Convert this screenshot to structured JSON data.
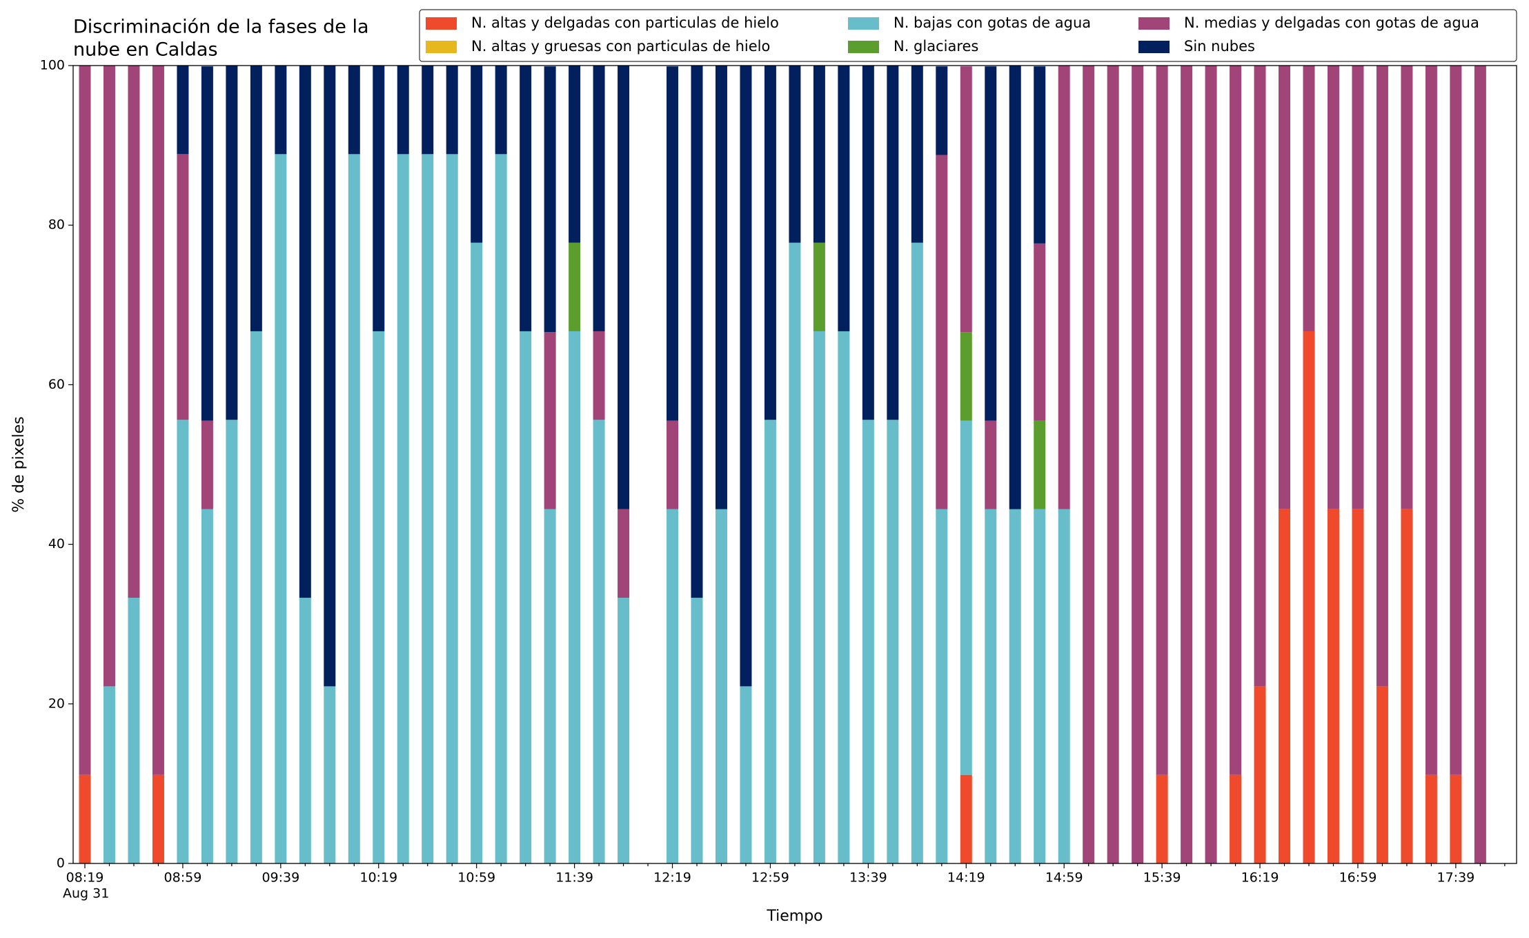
{
  "chart_data": {
    "type": "stacked_bar",
    "title": [
      "Discriminación de la fases de la",
      "nube en Caldas"
    ],
    "xlabel": "Tiempo",
    "ylabel": "% de pixeles",
    "x_date_label": "Aug 31",
    "categories": [
      "08:19",
      null,
      null,
      null,
      "08:59",
      null,
      null,
      null,
      "09:39",
      null,
      null,
      null,
      "10:19",
      null,
      null,
      null,
      "10:59",
      null,
      null,
      null,
      "11:39",
      null,
      null,
      null,
      "12:19",
      null,
      null,
      null,
      "12:59",
      null,
      null,
      null,
      "13:39",
      null,
      null,
      null,
      "14:19",
      null,
      null,
      null,
      "14:59",
      null,
      null,
      null,
      "15:39",
      null,
      null,
      null,
      "16:19",
      null,
      null,
      null,
      "16:59",
      null,
      null,
      null,
      "17:39",
      null,
      null
    ],
    "ylim": [
      0,
      100
    ],
    "yticks": [
      0,
      20,
      40,
      60,
      80,
      100
    ],
    "legend": "upper right",
    "series": [
      {
        "name": "N. altas y delgadas con particulas de hielo",
        "color": "#ef4a2c",
        "values": [
          11.1,
          0,
          0,
          11.1,
          0,
          0,
          0,
          0,
          0,
          0,
          0,
          0,
          0,
          0,
          0,
          0,
          0,
          0,
          0,
          0,
          0,
          0,
          0,
          null,
          0,
          0,
          0,
          0,
          0,
          0,
          0,
          0,
          0,
          0,
          0,
          0,
          11.1,
          0,
          0,
          0,
          0,
          0,
          0,
          0,
          11.1,
          0,
          0,
          11.1,
          22.2,
          44.4,
          66.7,
          44.4,
          44.4,
          22.2,
          44.4,
          11.1,
          11.1,
          0,
          null
        ]
      },
      {
        "name": "N. altas y gruesas con particulas de hielo",
        "color": "#e6b81d",
        "values": [
          0,
          0,
          0,
          0,
          0,
          0,
          0,
          0,
          0,
          0,
          0,
          0,
          0,
          0,
          0,
          0,
          0,
          0,
          0,
          0,
          0,
          0,
          0,
          null,
          0,
          0,
          0,
          0,
          0,
          0,
          0,
          0,
          0,
          0,
          0,
          0,
          0,
          0,
          0,
          0,
          0,
          0,
          0,
          0,
          0,
          0,
          0,
          0,
          0,
          0,
          0,
          0,
          0,
          0,
          0,
          0,
          0,
          0,
          null
        ]
      },
      {
        "name": "N. bajas con gotas de agua",
        "color": "#67bdc9",
        "values": [
          0,
          22.2,
          33.3,
          0,
          55.6,
          44.4,
          55.6,
          66.7,
          88.9,
          33.3,
          22.2,
          88.9,
          66.7,
          88.9,
          88.9,
          88.9,
          77.8,
          88.9,
          66.7,
          44.4,
          66.7,
          55.6,
          33.3,
          null,
          44.4,
          33.3,
          44.4,
          22.2,
          55.6,
          77.8,
          66.7,
          66.7,
          55.6,
          55.6,
          77.8,
          44.4,
          44.4,
          44.4,
          44.4,
          44.4,
          44.4,
          0,
          0,
          0,
          0,
          0,
          0,
          0,
          0,
          0,
          0,
          0,
          0,
          0,
          0,
          0,
          0,
          0,
          null
        ]
      },
      {
        "name": "N. glaciares",
        "color": "#5c9e2d",
        "values": [
          0,
          0,
          0,
          0,
          0,
          0,
          0,
          0,
          0,
          0,
          0,
          0,
          0,
          0,
          0,
          0,
          0,
          0,
          0,
          0,
          11.1,
          0,
          0,
          null,
          0,
          0,
          0,
          0,
          0,
          0,
          11.1,
          0,
          0,
          0,
          0,
          0,
          11.1,
          0,
          0,
          11.1,
          0,
          0,
          0,
          0,
          0,
          0,
          0,
          0,
          0,
          0,
          0,
          0,
          0,
          0,
          0,
          0,
          0,
          0,
          null
        ]
      },
      {
        "name": "N. medias y delgadas con gotas de agua",
        "color": "#a14579",
        "values": [
          88.9,
          77.8,
          66.7,
          88.9,
          33.3,
          11.1,
          0,
          0,
          0,
          0,
          0,
          0,
          0,
          0,
          0,
          0,
          0,
          0,
          0,
          22.2,
          0,
          11.1,
          11.1,
          null,
          11.1,
          0,
          0,
          0,
          0,
          0,
          0,
          0,
          0,
          0,
          0,
          44.4,
          33.3,
          11.1,
          0,
          22.2,
          55.6,
          100,
          100,
          100,
          88.9,
          100,
          100,
          88.9,
          77.8,
          55.6,
          33.3,
          55.6,
          55.6,
          77.8,
          55.6,
          88.9,
          88.9,
          100,
          null
        ]
      },
      {
        "name": "Sin nubes",
        "color": "#03205e",
        "values": [
          0,
          0,
          0,
          0,
          11.1,
          44.4,
          44.4,
          33.3,
          11.1,
          66.7,
          77.8,
          11.1,
          33.3,
          11.1,
          11.1,
          11.1,
          22.2,
          11.1,
          33.3,
          33.3,
          22.2,
          33.3,
          55.6,
          null,
          44.4,
          66.7,
          55.6,
          77.8,
          44.4,
          22.2,
          22.2,
          33.3,
          44.4,
          44.4,
          22.2,
          11.1,
          0,
          44.4,
          55.6,
          22.2,
          0,
          0,
          0,
          0,
          0,
          0,
          0,
          0,
          0,
          0,
          0,
          0,
          0,
          0,
          0,
          0,
          0,
          0,
          null
        ]
      }
    ]
  }
}
